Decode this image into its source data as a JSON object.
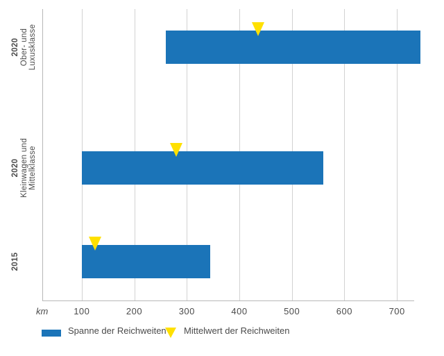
{
  "chart_data": {
    "type": "bar",
    "orientation": "horizontal",
    "title": "",
    "unit": "km",
    "x_axis": {
      "label": "km",
      "ticks": [
        100,
        200,
        300,
        400,
        500,
        600,
        700
      ],
      "range_km": [
        25,
        733
      ],
      "grid": true
    },
    "rows": [
      {
        "year": "2020",
        "class_lines": [
          "Ober- und",
          "Luxusklasse"
        ],
        "min_km": 260,
        "max_km": 745,
        "mean_km": 435
      },
      {
        "year": "2020",
        "class_lines": [
          "Kleinwagen und",
          "Mittelklasse"
        ],
        "min_km": 100,
        "max_km": 560,
        "mean_km": 280
      },
      {
        "year": "2015",
        "class_lines": [],
        "min_km": 100,
        "max_km": 345,
        "mean_km": 125
      }
    ],
    "legend": [
      {
        "label": "Spanne der Reichweiten",
        "marker": "bar"
      },
      {
        "label": "Mittelwert der Reichweiten",
        "marker": "triangle-down"
      }
    ],
    "legend_position": "bottom-left"
  },
  "colors": {
    "bar_blue": "#1b74b8",
    "mean_yellow": "#ffe000",
    "gridline": "#d2d2d2",
    "axis": "#b7b7b7",
    "text": "#4a4a4a"
  }
}
